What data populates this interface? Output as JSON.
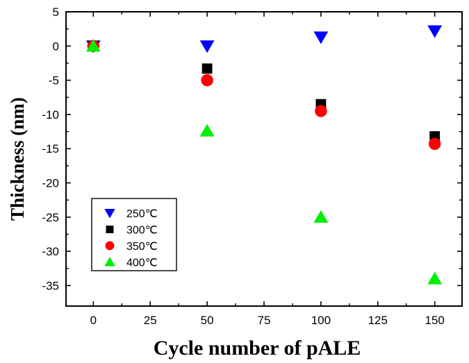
{
  "chart_data": {
    "type": "scatter",
    "title": "",
    "xlabel": "Cycle number of pALE",
    "ylabel": "Thickness (nm)",
    "xlim": [
      -12,
      162
    ],
    "ylim": [
      -38,
      5
    ],
    "xticks": [
      0,
      25,
      50,
      75,
      100,
      125,
      150
    ],
    "yticks": [
      5,
      0,
      -5,
      -10,
      -15,
      -20,
      -25,
      -30,
      -35
    ],
    "grid": false,
    "legend_position": "bottom-left",
    "series": [
      {
        "name": "250℃",
        "marker": "triangle-down",
        "color": "#0000ff",
        "x": [
          0,
          50,
          100,
          150
        ],
        "y": [
          0,
          0,
          1.3,
          2.2
        ]
      },
      {
        "name": "300℃",
        "marker": "square",
        "color": "#000000",
        "x": [
          0,
          50,
          100,
          150
        ],
        "y": [
          0,
          -3.3,
          -8.5,
          -13.2
        ]
      },
      {
        "name": "350℃",
        "marker": "circle",
        "color": "#ff0000",
        "x": [
          0,
          50,
          100,
          150
        ],
        "y": [
          0,
          -5.0,
          -9.5,
          -14.3
        ]
      },
      {
        "name": "400℃",
        "marker": "triangle-up",
        "color": "#00ee00",
        "x": [
          0,
          50,
          100,
          150
        ],
        "y": [
          0,
          -12.4,
          -25.0,
          -34.0
        ]
      }
    ]
  }
}
